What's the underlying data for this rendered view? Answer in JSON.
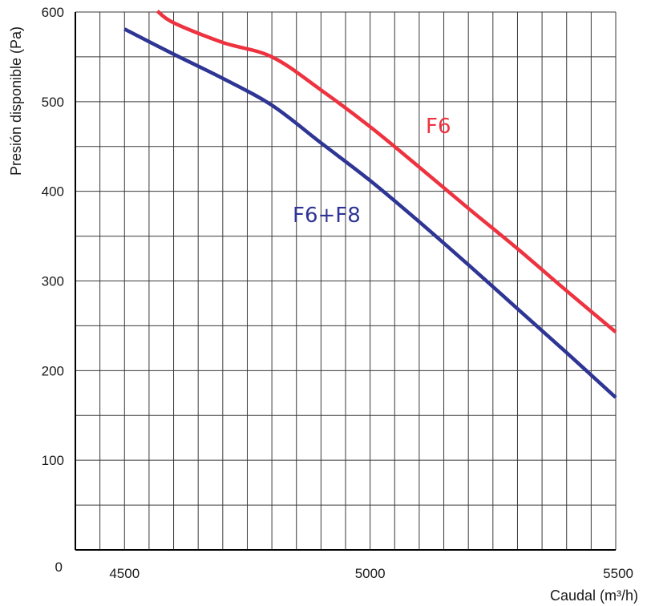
{
  "chart_data": {
    "type": "line",
    "xlabel": "Caudal (m³/h)",
    "ylabel": "Presión disponible (Pa)",
    "xlim": [
      4400,
      5500
    ],
    "ylim": [
      0,
      600
    ],
    "x_ticks": [
      4500,
      5000,
      5500
    ],
    "y_ticks": [
      0,
      100,
      200,
      300,
      400,
      500,
      600
    ],
    "x_tick_labels": [
      "4500",
      "5000",
      "5500"
    ],
    "y_tick_labels": [
      "0",
      "100",
      "200",
      "300",
      "400",
      "500",
      "600"
    ],
    "grid": true,
    "grid_x_step": 50,
    "grid_y_step": 50,
    "series": [
      {
        "name": "F6",
        "color": "#ee3340",
        "x": [
          4567,
          4600,
          4700,
          4800,
          4900,
          5000,
          5100,
          5200,
          5300,
          5400,
          5500
        ],
        "y": [
          601,
          588,
          566,
          550,
          513,
          472,
          427,
          381,
          336,
          289,
          243
        ]
      },
      {
        "name": "F6+F8",
        "color": "#2e3594",
        "x": [
          4500,
          4600,
          4700,
          4800,
          4900,
          5000,
          5100,
          5200,
          5300,
          5400,
          5500
        ],
        "y": [
          581,
          553,
          526,
          496,
          454,
          412,
          366,
          318,
          269,
          220,
          170
        ]
      }
    ]
  }
}
